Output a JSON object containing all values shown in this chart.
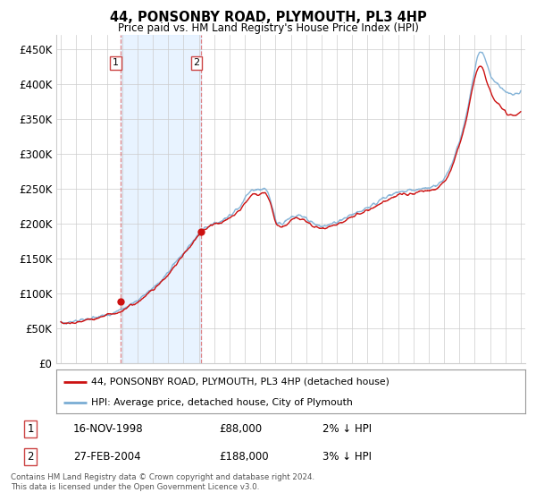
{
  "title": "44, PONSONBY ROAD, PLYMOUTH, PL3 4HP",
  "subtitle": "Price paid vs. HM Land Registry's House Price Index (HPI)",
  "ylabel_ticks": [
    "£0",
    "£50K",
    "£100K",
    "£150K",
    "£200K",
    "£250K",
    "£300K",
    "£350K",
    "£400K",
    "£450K"
  ],
  "ytick_values": [
    0,
    50000,
    100000,
    150000,
    200000,
    250000,
    300000,
    350000,
    400000,
    450000
  ],
  "ylim": [
    0,
    470000
  ],
  "xlim_start": 1994.7,
  "xlim_end": 2025.3,
  "hpi_color": "#7aadd4",
  "price_color": "#cc1111",
  "sale1_date": 1998.88,
  "sale1_price": 88000,
  "sale2_date": 2004.15,
  "sale2_price": 188000,
  "legend_line1": "44, PONSONBY ROAD, PLYMOUTH, PL3 4HP (detached house)",
  "legend_line2": "HPI: Average price, detached house, City of Plymouth",
  "table_row1": [
    "1",
    "16-NOV-1998",
    "£88,000",
    "2% ↓ HPI"
  ],
  "table_row2": [
    "2",
    "27-FEB-2004",
    "£188,000",
    "3% ↓ HPI"
  ],
  "footer": "Contains HM Land Registry data © Crown copyright and database right 2024.\nThis data is licensed under the Open Government Licence v3.0.",
  "background_color": "#ffffff",
  "grid_color": "#cccccc",
  "shade_color": "#ddeeff"
}
